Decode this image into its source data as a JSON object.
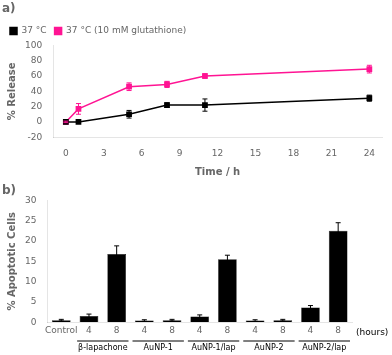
{
  "chart_data": [
    {
      "type": "line",
      "title": "a)",
      "xlabel": "Time / h",
      "ylabel": "% Release",
      "xlim": [
        -1,
        25
      ],
      "xticks": [
        0,
        3,
        6,
        9,
        12,
        15,
        18,
        21,
        24
      ],
      "ylim": [
        -20,
        100
      ],
      "yticks": [
        -20,
        0,
        20,
        40,
        60,
        80,
        100
      ],
      "grid": false,
      "legend": "upper left",
      "marker": "square",
      "x": [
        0,
        1,
        5,
        8,
        11,
        24
      ],
      "series": [
        {
          "name": "37 °C",
          "color": "black",
          "values": [
            0,
            0,
            10,
            22,
            22,
            31
          ],
          "yerr": [
            1,
            1,
            5,
            3,
            8,
            4
          ]
        },
        {
          "name": "37 °C (10 mM glutathione)",
          "color": "#FF1493",
          "values": [
            0,
            17,
            46,
            49,
            60,
            69
          ],
          "yerr": [
            1,
            7,
            5,
            4,
            3,
            5
          ]
        }
      ]
    },
    {
      "type": "bar",
      "title": "b)",
      "ylabel": "% Apoptotic Cells",
      "xlabel": "(hours)",
      "categories": [
        "Control",
        "4",
        "8",
        "4",
        "8",
        "4",
        "8",
        "4",
        "8",
        "4",
        "8"
      ],
      "groups": [
        null,
        "β-lapachone",
        "β-lapachone",
        "AuNP-1",
        "AuNP-1",
        "AuNP-1/lap",
        "AuNP-1/lap",
        "AuNP-2",
        "AuNP-2",
        "AuNP-2/lap",
        "AuNP-2/lap"
      ],
      "values": [
        0.5,
        1.5,
        16.8,
        0.4,
        0.5,
        1.4,
        15.5,
        0.4,
        0.5,
        3.6,
        22.5
      ],
      "yerr": [
        0.2,
        0.5,
        2.0,
        0.2,
        0.2,
        0.4,
        1.0,
        0.2,
        0.2,
        0.5,
        2.0
      ],
      "color": "black",
      "ylim": [
        0,
        30
      ],
      "yticks": [
        0,
        5,
        10,
        15,
        20,
        25,
        30
      ],
      "grid": false
    }
  ]
}
